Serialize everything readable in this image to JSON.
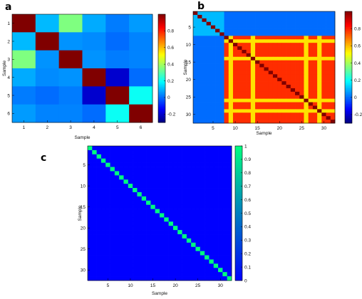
{
  "chart_data": [
    {
      "id": "a",
      "panel_label": "a",
      "type": "heatmap",
      "xlabel": "Sample",
      "ylabel": "Sample",
      "x_ticks": [
        1,
        2,
        3,
        4,
        5,
        6
      ],
      "y_ticks": [
        1,
        2,
        3,
        4,
        5,
        6
      ],
      "colormap": "jet",
      "clim": [
        -0.3,
        1
      ],
      "colorbar_ticks": [
        -0.2,
        0,
        0.2,
        0.4,
        0.6,
        0.8
      ],
      "matrix": [
        [
          1.0,
          0.1,
          0.35,
          0.08,
          0.02,
          0.06
        ],
        [
          0.1,
          1.0,
          0.05,
          0.04,
          0.0,
          0.03
        ],
        [
          0.35,
          0.05,
          1.0,
          0.05,
          0.02,
          0.03
        ],
        [
          0.08,
          0.04,
          0.05,
          1.0,
          -0.2,
          0.0
        ],
        [
          0.02,
          0.0,
          0.02,
          -0.2,
          1.0,
          0.2
        ],
        [
          0.06,
          0.03,
          0.03,
          0.0,
          0.2,
          1.0
        ]
      ]
    },
    {
      "id": "b",
      "panel_label": "b",
      "type": "heatmap",
      "xlabel": "Sample",
      "ylabel": "Sample",
      "x_ticks": [
        5,
        10,
        15,
        20,
        25,
        30
      ],
      "y_ticks": [
        5,
        10,
        15,
        20,
        25,
        30
      ],
      "n": 32,
      "colormap": "jet",
      "clim": [
        -0.3,
        1
      ],
      "colorbar_ticks": [
        -0.2,
        0,
        0.2,
        0.4,
        0.6,
        0.8
      ],
      "group_a_samples": [
        1,
        2,
        3,
        4,
        5,
        6,
        7
      ],
      "group_b_samples": [
        8,
        9,
        10,
        11,
        12,
        13,
        14,
        15,
        16,
        17,
        18,
        19,
        20,
        21,
        22,
        23,
        24,
        25,
        26,
        27,
        28,
        29,
        30,
        31,
        32
      ],
      "highlight_samples": [
        9,
        14,
        26,
        29
      ],
      "within_group_a_value": 0.1,
      "between_group_value": 0.0,
      "within_group_b_value": 0.78,
      "highlight_value": 0.55,
      "diagonal_value": 1.0
    },
    {
      "id": "c",
      "panel_label": "c",
      "type": "heatmap",
      "xlabel": "Sample",
      "ylabel": "Sample",
      "x_ticks": [
        5,
        10,
        15,
        20,
        25,
        30
      ],
      "y_ticks": [
        5,
        10,
        15,
        20,
        25,
        30
      ],
      "n": 32,
      "colormap": "winter",
      "clim": [
        0,
        1
      ],
      "colorbar_ticks": [
        0,
        0.1,
        0.2,
        0.3,
        0.4,
        0.5,
        0.6,
        0.7,
        0.8,
        0.9,
        1
      ],
      "diagonal_value": 1,
      "off_diagonal_value": 0
    }
  ]
}
